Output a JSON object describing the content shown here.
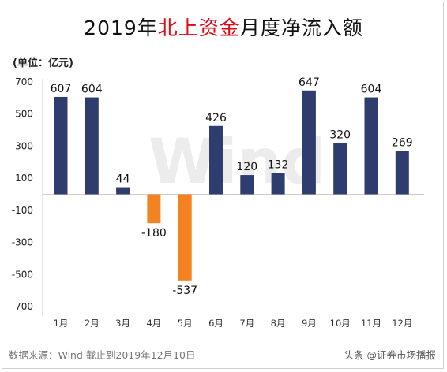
{
  "title": {
    "pre": "2019年",
    "highlight": "北上资金",
    "post": "月度净流入额"
  },
  "unit_label": "(单位：亿元)",
  "source_text": "数据来源：Wind  截止到2019年12月10日",
  "badge_text": "头条 @证券市场播报",
  "watermark": "Wind",
  "colors": {
    "positive": "#2e3c6e",
    "negative": "#f58220",
    "title_highlight": "#e30613"
  },
  "chart_data": {
    "type": "bar",
    "categories": [
      "1月",
      "2月",
      "3月",
      "4月",
      "5月",
      "6月",
      "7月",
      "8月",
      "9月",
      "10月",
      "11月",
      "12月"
    ],
    "values": [
      607,
      604,
      44,
      -180,
      -537,
      426,
      120,
      132,
      647,
      320,
      604,
      269
    ],
    "data_labels": [
      "607",
      "604",
      "44",
      "-180",
      "-537",
      "426",
      "120",
      "132",
      "647",
      "320",
      "604",
      "269"
    ],
    "ytick_labels": [
      "700",
      "500",
      "300",
      "100",
      "-100",
      "-300",
      "-500",
      "-700"
    ],
    "ylim": [
      -700,
      700
    ],
    "grid": false
  }
}
